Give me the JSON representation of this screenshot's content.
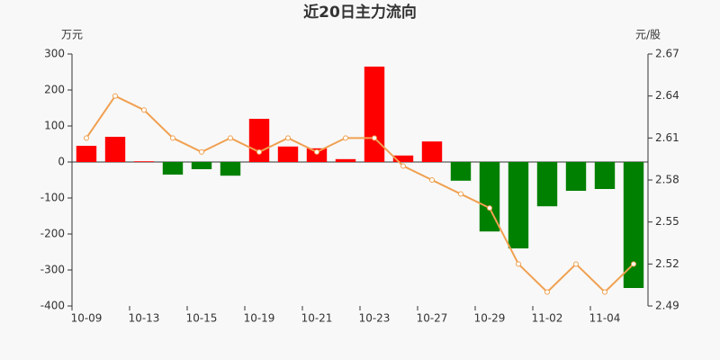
{
  "chart_data": {
    "type": "bar",
    "title": "近20日主力流向",
    "y_label": "万元",
    "y2_label": "元/股",
    "categories": [
      "10-09",
      null,
      "10-13",
      null,
      "10-15",
      null,
      "10-19",
      null,
      "10-21",
      null,
      "10-23",
      null,
      "10-27",
      null,
      "10-29",
      null,
      "11-02",
      null,
      "11-04",
      null
    ],
    "series": [
      {
        "type": "bar",
        "color": "#ff0000",
        "negative_color": "#008000",
        "values": [
          45,
          70,
          2,
          -35,
          -20,
          -38,
          120,
          43,
          38,
          8,
          265,
          18,
          57,
          -52,
          -193,
          -240,
          -123,
          -80,
          -75,
          -350
        ]
      },
      {
        "type": "line",
        "axis": "y2",
        "color": "#f0a050",
        "values": [
          2.61,
          2.64,
          2.63,
          2.61,
          2.6,
          2.61,
          2.6,
          2.61,
          2.6,
          2.61,
          2.61,
          2.59,
          2.58,
          2.57,
          2.56,
          2.52,
          2.5,
          2.52,
          2.5,
          2.52
        ]
      }
    ],
    "ylim": [
      -400,
      300
    ],
    "yticks": [
      -400,
      -300,
      -200,
      -100,
      0,
      100,
      200,
      300
    ],
    "y2lim": [
      2.49,
      2.67
    ],
    "y2ticks": [
      2.49,
      2.52,
      2.55,
      2.58,
      2.61,
      2.64,
      2.67
    ],
    "grid": false
  }
}
